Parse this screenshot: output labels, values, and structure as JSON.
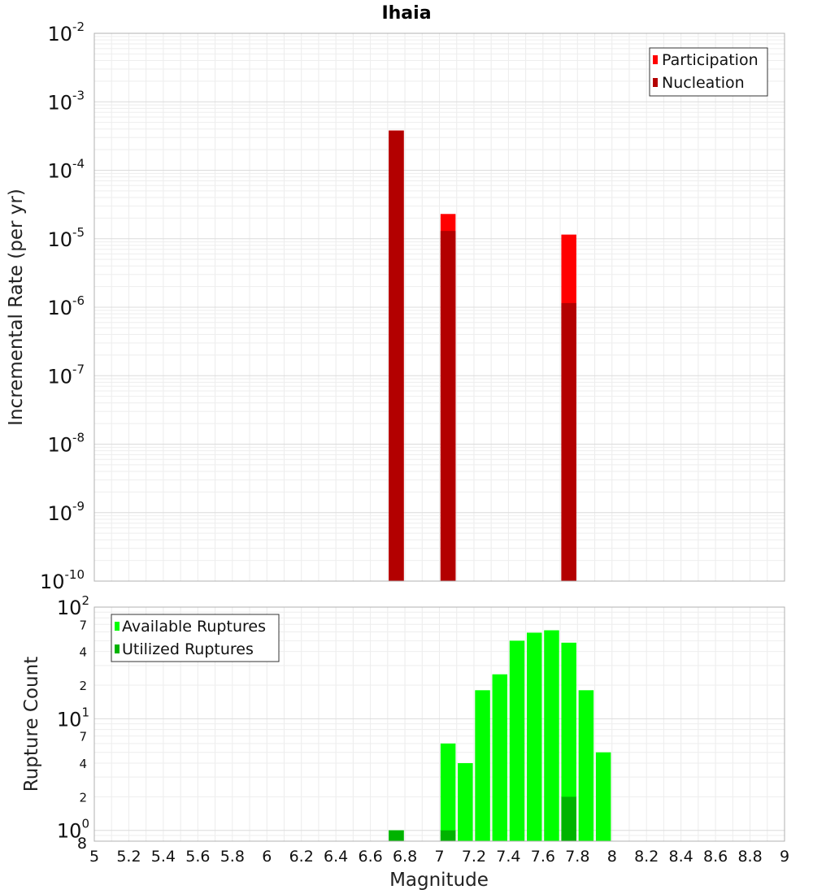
{
  "chart_data": [
    {
      "type": "bar",
      "title": "Ihaia",
      "ylabel": "Incremental Rate (per yr)",
      "yscale": "log",
      "ylim": [
        1e-10,
        0.01
      ],
      "xlim": [
        5,
        9
      ],
      "grid": true,
      "legend_position": "top-right",
      "y_tick_labels": [
        {
          "base": "10",
          "exp": "-10"
        },
        {
          "base": "10",
          "exp": "-9"
        },
        {
          "base": "10",
          "exp": "-8"
        },
        {
          "base": "10",
          "exp": "-7"
        },
        {
          "base": "10",
          "exp": "-6"
        },
        {
          "base": "10",
          "exp": "-5"
        },
        {
          "base": "10",
          "exp": "-4"
        },
        {
          "base": "10",
          "exp": "-3"
        },
        {
          "base": "10",
          "exp": "-2"
        }
      ],
      "series": [
        {
          "name": "Participation",
          "color": "#ff0000",
          "x": [
            6.75,
            7.05,
            7.75
          ],
          "values": [
            0.00038,
            2.3e-05,
            1.15e-05
          ]
        },
        {
          "name": "Nucleation",
          "color": "#b30000",
          "x": [
            6.75,
            7.05,
            7.75
          ],
          "values": [
            0.00038,
            1.3e-05,
            1.15e-06
          ]
        }
      ]
    },
    {
      "type": "bar",
      "ylabel": "Rupture Count",
      "xlabel": "Magnitude",
      "yscale": "log",
      "ylim": [
        0.8,
        100
      ],
      "xlim": [
        5,
        9
      ],
      "grid": true,
      "legend_position": "top-left",
      "x_ticks": [
        "5",
        "5.2",
        "5.4",
        "5.6",
        "5.8",
        "6",
        "6.2",
        "6.4",
        "6.6",
        "6.8",
        "7",
        "7.2",
        "7.4",
        "7.6",
        "7.8",
        "8",
        "8.2",
        "8.4",
        "8.6",
        "8.8",
        "9"
      ],
      "y_major_labels": [
        {
          "base": "10",
          "exp": "0",
          "value": 1
        },
        {
          "base": "10",
          "exp": "1",
          "value": 10
        },
        {
          "base": "10",
          "exp": "2",
          "value": 100
        }
      ],
      "y_minor_labels": [
        {
          "label": "8",
          "value": 0.8
        },
        {
          "label": "2",
          "value": 2
        },
        {
          "label": "4",
          "value": 4
        },
        {
          "label": "7",
          "value": 7
        },
        {
          "label": "2",
          "value": 20
        },
        {
          "label": "4",
          "value": 40
        },
        {
          "label": "7",
          "value": 70
        }
      ],
      "series": [
        {
          "name": "Available Ruptures",
          "color": "#00ff00",
          "x": [
            6.75,
            7.05,
            7.15,
            7.25,
            7.35,
            7.45,
            7.55,
            7.65,
            7.75,
            7.85,
            7.95
          ],
          "values": [
            1,
            6,
            4,
            18,
            25,
            50,
            59,
            62,
            48,
            18,
            5
          ]
        },
        {
          "name": "Utilized Ruptures",
          "color": "#00b300",
          "x": [
            6.75,
            7.05,
            7.75
          ],
          "values": [
            1,
            1,
            2
          ]
        }
      ]
    }
  ]
}
